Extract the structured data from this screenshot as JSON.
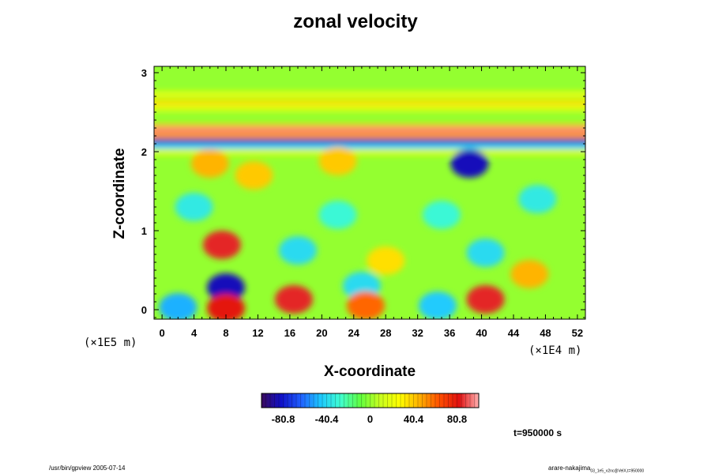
{
  "chart_data": {
    "type": "heatmap",
    "title": "zonal velocity",
    "xlabel": "X-coordinate",
    "ylabel": "Z-coordinate",
    "x_unit": "(×1E4 m)",
    "y_unit": "(×1E5 m)",
    "xlim": [
      -1,
      53
    ],
    "ylim": [
      -0.12,
      3.08
    ],
    "x_ticks": [
      0,
      4,
      8,
      12,
      16,
      20,
      24,
      28,
      32,
      36,
      40,
      44,
      48,
      52
    ],
    "y_ticks": [
      0,
      1,
      2,
      3
    ],
    "colorbar": {
      "range": [
        -101,
        101
      ],
      "ticks": [
        -80.8,
        -40.4,
        0,
        40.4,
        80.8
      ],
      "tick_labels": [
        "-80.8",
        "-40.4",
        "0",
        "40.4",
        "80.8"
      ],
      "colors": [
        "#3a0a5c",
        "#1010c8",
        "#2060ff",
        "#1ec8ff",
        "#40ffd0",
        "#60ff40",
        "#c8ff20",
        "#ffff00",
        "#ffb000",
        "#ff5000",
        "#e01010",
        "#ffb0b0"
      ]
    },
    "background_value": 0,
    "bands": [
      {
        "z": 2.73,
        "value": 20
      },
      {
        "z": 2.62,
        "value": 35
      },
      {
        "z": 2.55,
        "value": 15
      },
      {
        "z": 2.32,
        "value": 40
      },
      {
        "z": 2.27,
        "value": 95
      },
      {
        "z": 2.21,
        "value": 50
      },
      {
        "z": 2.13,
        "value": -85
      },
      {
        "z": 2.07,
        "value": -45
      },
      {
        "z": 2.0,
        "value": 15
      }
    ],
    "features": [
      {
        "x": 7.5,
        "z": 0.82,
        "value": 85
      },
      {
        "x": 8.0,
        "z": 0.28,
        "value": -85
      },
      {
        "x": 16.5,
        "z": 0.13,
        "value": 85
      },
      {
        "x": 40.5,
        "z": 0.13,
        "value": 85
      },
      {
        "x": 8.0,
        "z": 0.02,
        "value": 80
      },
      {
        "x": 2.0,
        "z": 0.03,
        "value": -50
      },
      {
        "x": 17.0,
        "z": 0.75,
        "value": -40
      },
      {
        "x": 38.5,
        "z": 1.85,
        "value": -85
      },
      {
        "x": 34.5,
        "z": 0.05,
        "value": -45
      },
      {
        "x": 25.0,
        "z": 0.3,
        "value": -40
      },
      {
        "x": 40.5,
        "z": 0.72,
        "value": -40
      },
      {
        "x": 6.0,
        "z": 1.85,
        "value": 45
      },
      {
        "x": 11.5,
        "z": 1.7,
        "value": 40
      },
      {
        "x": 22.0,
        "z": 1.88,
        "value": 40
      },
      {
        "x": 25.5,
        "z": 0.05,
        "value": 60
      },
      {
        "x": 46.0,
        "z": 0.45,
        "value": 45
      },
      {
        "x": 28.0,
        "z": 0.62,
        "value": 35
      },
      {
        "x": 4.0,
        "z": 1.3,
        "value": -35
      },
      {
        "x": 22.0,
        "z": 1.2,
        "value": -30
      },
      {
        "x": 47.0,
        "z": 1.4,
        "value": -35
      },
      {
        "x": 35.0,
        "z": 1.2,
        "value": -30
      }
    ],
    "annotation": "t=950000 s"
  },
  "footer": {
    "left": "/usr/bin/gpview 2005-07-14",
    "right_main": "arare-nakajima",
    "right_sub": "03_1e5_v2nc@VelX,t=950000"
  }
}
